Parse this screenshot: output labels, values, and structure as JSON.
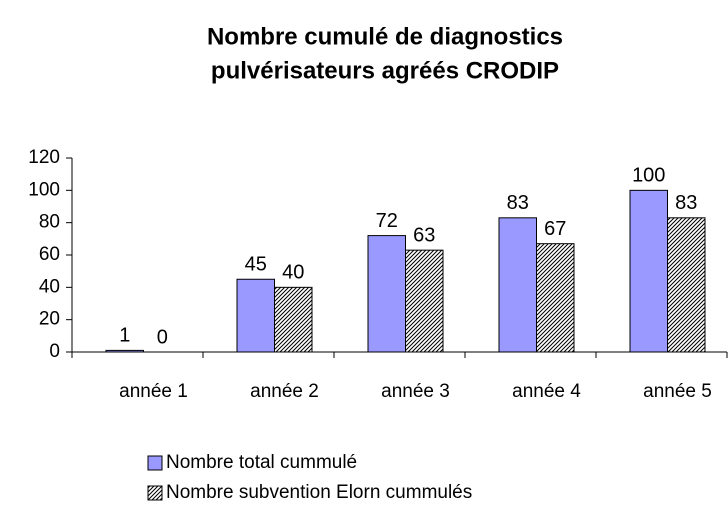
{
  "chart_data": {
    "type": "bar",
    "title": [
      "Nombre cumulé de diagnostics",
      "pulvérisateurs agréés CRODIP"
    ],
    "categories": [
      "année 1",
      "année 2",
      "année 3",
      "année 4",
      "année 5"
    ],
    "series": [
      {
        "name": "Nombre total cummulé",
        "color": "#9999ff",
        "values": [
          1,
          45,
          72,
          83,
          100
        ]
      },
      {
        "name": "Nombre subvention Elorn cummulés",
        "color": "#000000",
        "pattern": "hatch",
        "values": [
          0,
          40,
          63,
          67,
          83
        ]
      }
    ],
    "ylim": [
      0,
      120
    ],
    "yticks": [
      0,
      20,
      40,
      60,
      80,
      100,
      120
    ],
    "grid": false,
    "legend": "bottom"
  }
}
